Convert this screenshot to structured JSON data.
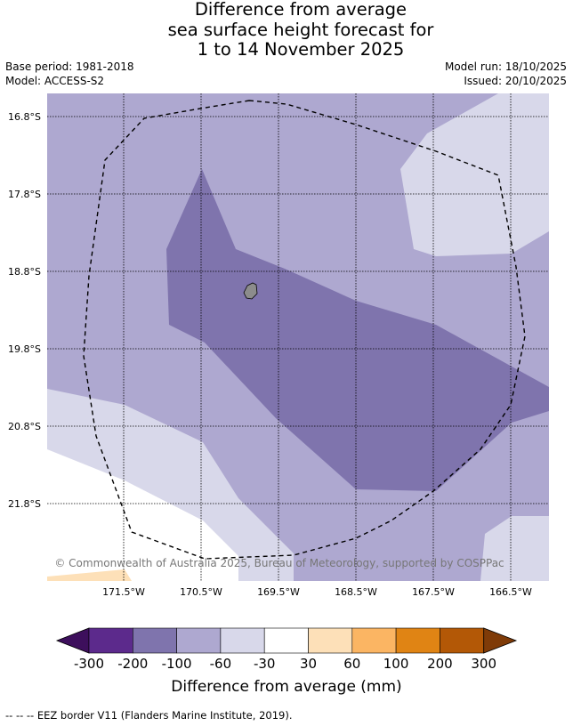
{
  "title": {
    "line1": "Difference from average",
    "line2": "sea surface height forecast for",
    "line3": "1 to 14 November 2025"
  },
  "meta": {
    "base_period": "Base period: 1981-2018",
    "model": "Model: ACCESS-S2",
    "model_run": "Model run: 18/10/2025",
    "issued": "Issued: 20/10/2025"
  },
  "map": {
    "lat_labels": [
      "16.8°S",
      "17.8°S",
      "18.8°S",
      "19.8°S",
      "20.8°S",
      "21.8°S"
    ],
    "lon_labels": [
      "171.5°W",
      "170.5°W",
      "169.5°W",
      "168.5°W",
      "167.5°W",
      "166.5°W"
    ],
    "copyright": "© Commonwealth of Australia 2025, Bureau of Meteorology, supported by COSPPac",
    "fill_colors": {
      "-100_-60": "#aea8d0",
      "-200_-100": "#7f74ad",
      "-60_-30": "#d8d8ea",
      "-30_30": "#ffffff",
      "30_60": "#fde0b8"
    },
    "island_color": "#8c8c8c"
  },
  "colorbar": {
    "ticks": [
      "-300",
      "-200",
      "-100",
      "-60",
      "-30",
      "30",
      "60",
      "100",
      "200",
      "300"
    ],
    "colors": [
      "#3d0f5c",
      "#5c2a8c",
      "#7f74ad",
      "#aea8d0",
      "#d8d8ea",
      "#ffffff",
      "#fde0b8",
      "#fbb563",
      "#e08414",
      "#b35806",
      "#7f3b08"
    ],
    "label": "Difference from average (mm)"
  },
  "footnote": "--  --  -- EEZ border V11 (Flanders Marine Institute, 2019)."
}
